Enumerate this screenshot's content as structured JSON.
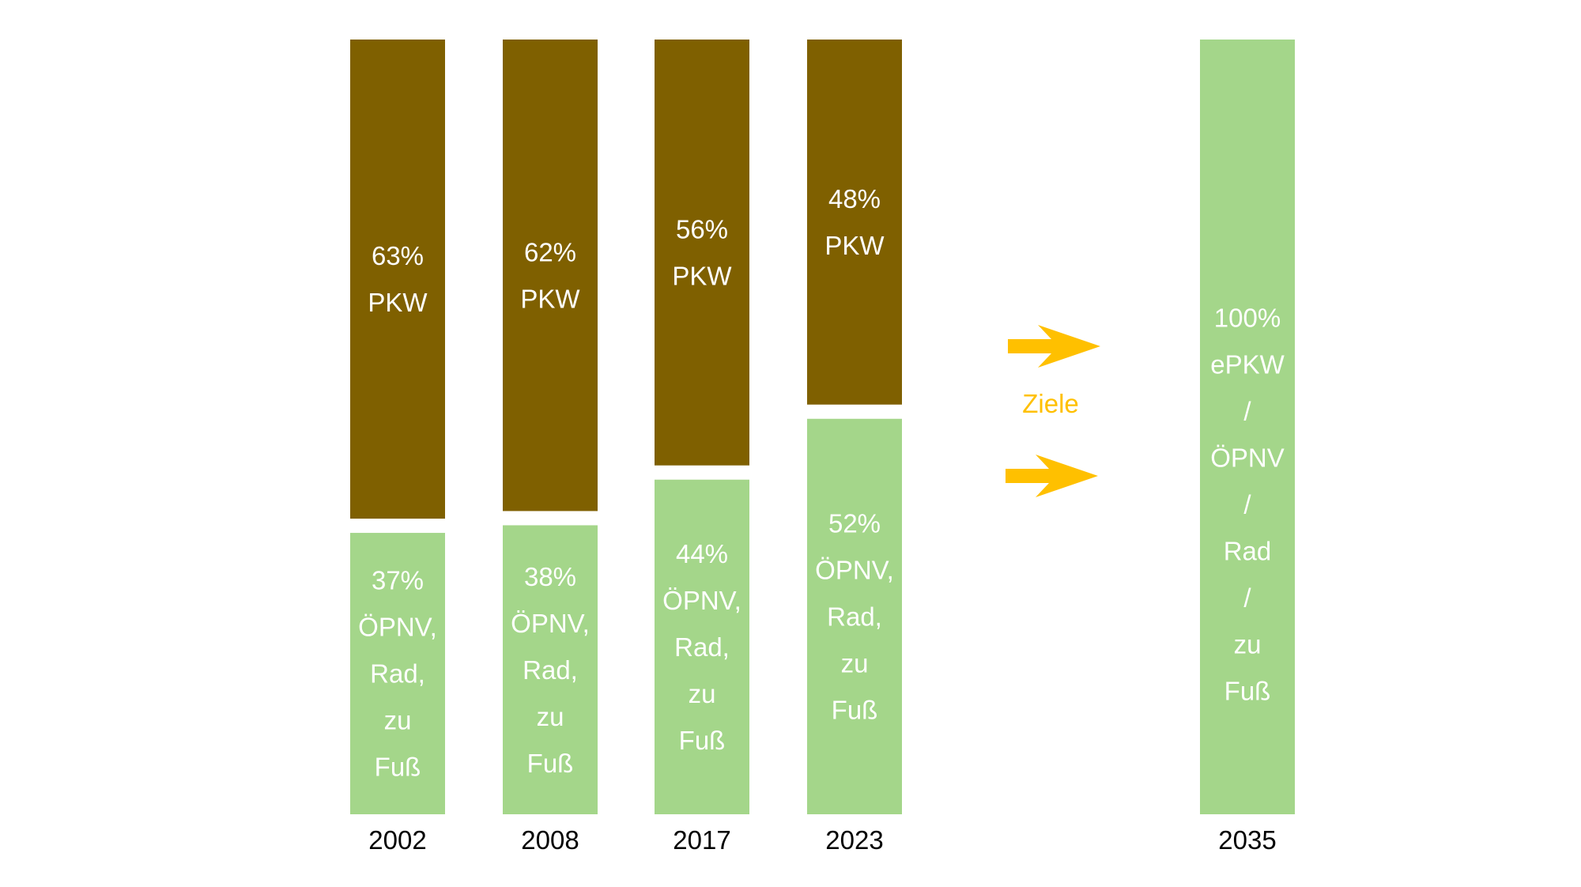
{
  "chart_data": {
    "type": "bar",
    "stacked": true,
    "categories": [
      "2002",
      "2008",
      "2017",
      "2023",
      "2035"
    ],
    "series": [
      {
        "name": "PKW",
        "values": [
          63,
          62,
          56,
          48,
          null
        ],
        "color": "#7f6000",
        "labels": [
          [
            "63%",
            "PKW"
          ],
          [
            "62%",
            "PKW"
          ],
          [
            "56%",
            "PKW"
          ],
          [
            "48%",
            "PKW"
          ],
          null
        ]
      },
      {
        "name": "ÖPNV, Rad, zu Fuß",
        "values": [
          37,
          38,
          44,
          52,
          100
        ],
        "color": "#a4d68a",
        "labels": [
          [
            "37%",
            "ÖPNV,",
            "Rad,",
            "zu",
            "Fuß"
          ],
          [
            "38%",
            "ÖPNV,",
            "Rad,",
            "zu",
            "Fuß"
          ],
          [
            "44%",
            "ÖPNV,",
            "Rad,",
            "zu",
            "Fuß"
          ],
          [
            "52%",
            "ÖPNV,",
            "Rad,",
            "zu",
            "Fuß"
          ],
          [
            "100%",
            "ePKW",
            "/",
            "ÖPNV",
            "/",
            "Rad",
            "/",
            "zu",
            "Fuß"
          ]
        ]
      }
    ],
    "ylim": [
      0,
      100
    ],
    "grid": false,
    "legend": "none",
    "annotation": {
      "text": "Ziele",
      "color": "#ffc000",
      "arrows": 2
    },
    "label_color": "#ffffff",
    "tick_label_color": "#000000"
  }
}
